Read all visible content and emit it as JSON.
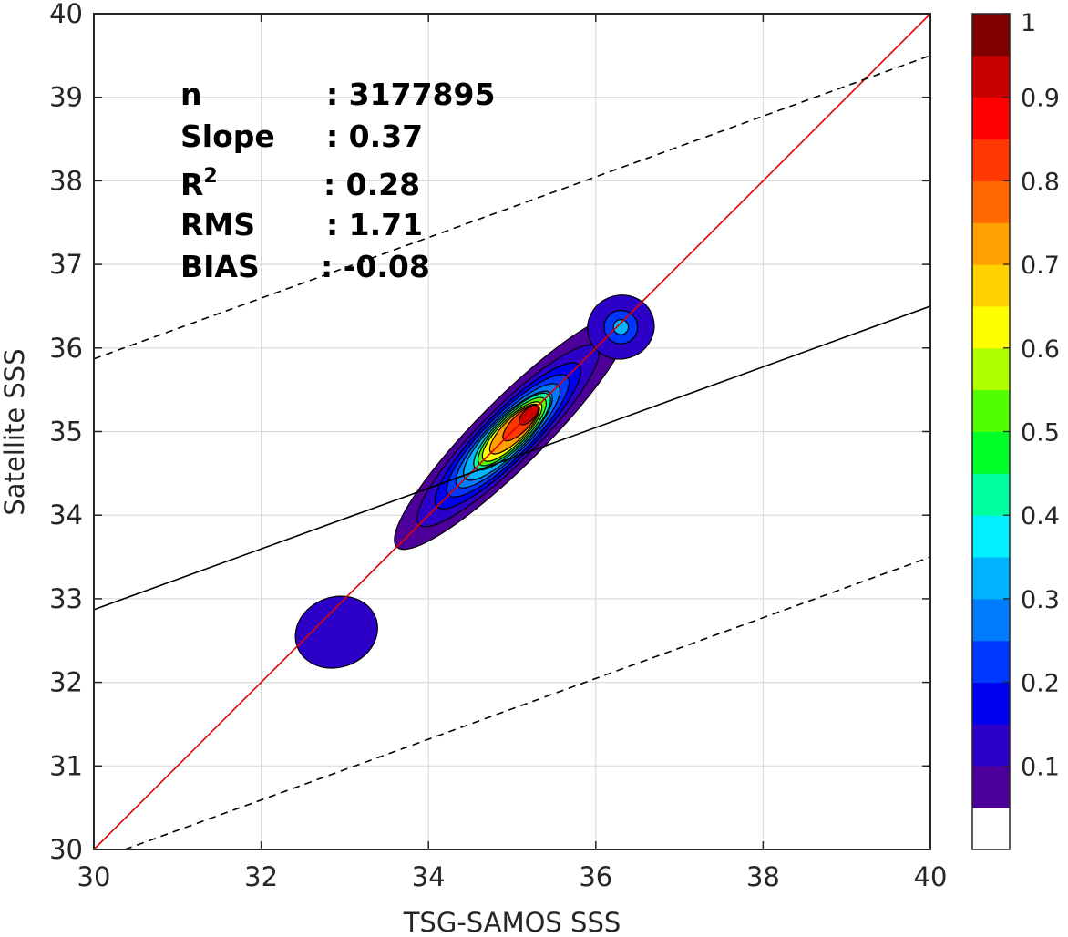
{
  "chart_data": {
    "type": "contour",
    "xlabel": "TSG-SAMOS SSS",
    "ylabel": "Satellite SSS",
    "xlim": [
      30,
      40
    ],
    "ylim": [
      30,
      40
    ],
    "x_ticks": [
      "30",
      "32",
      "34",
      "36",
      "38",
      "40"
    ],
    "y_ticks": [
      "30",
      "31",
      "32",
      "33",
      "34",
      "35",
      "36",
      "37",
      "38",
      "39",
      "40"
    ],
    "grid": true,
    "stats": [
      {
        "label": "n",
        "value": ": 3177895"
      },
      {
        "label": "Slope",
        "value": ": 0.37"
      },
      {
        "label": "R",
        "sup": "2",
        "value": ": 0.28"
      },
      {
        "label": "RMS",
        "value": ": 1.71"
      },
      {
        "label": "BIAS",
        "value": ": -0.08"
      }
    ],
    "lines": {
      "identity": {
        "x": [
          30,
          40
        ],
        "y": [
          30,
          40
        ],
        "color": "#e00000"
      },
      "fit": {
        "x": [
          30,
          40
        ],
        "y": [
          32.87,
          36.5
        ],
        "color": "#000000"
      },
      "upper_bound": {
        "x": [
          30,
          40
        ],
        "y": [
          35.87,
          39.5
        ],
        "dashed": true
      },
      "lower_bound": {
        "x": [
          30.37,
          40
        ],
        "y": [
          30,
          33.5
        ],
        "dashed": true
      }
    },
    "colorbar": {
      "ticks": [
        "0.1",
        "0.2",
        "0.3",
        "0.4",
        "0.5",
        "0.6",
        "0.7",
        "0.8",
        "0.9",
        "1"
      ],
      "range": [
        0,
        1
      ],
      "colors": [
        "#ffffff",
        "#4c0099",
        "#2d00c8",
        "#0000f0",
        "#0037ff",
        "#007cff",
        "#00b4ff",
        "#00f0ff",
        "#00ffa0",
        "#00ff28",
        "#50ff00",
        "#b0ff00",
        "#ffff00",
        "#ffd200",
        "#ffa000",
        "#ff6900",
        "#ff3700",
        "#ff0000",
        "#c80000",
        "#800000"
      ]
    },
    "density_levels": [
      {
        "level": 0.05,
        "cx": 35.0,
        "cy": 35.0,
        "rx": 1.95,
        "ry": 0.4
      },
      {
        "level": 0.1,
        "cx": 34.95,
        "cy": 34.95,
        "rx": 1.5,
        "ry": 0.33
      },
      {
        "level": 0.15,
        "cx": 34.95,
        "cy": 34.95,
        "rx": 1.2,
        "ry": 0.29
      },
      {
        "level": 0.2,
        "cx": 34.95,
        "cy": 34.95,
        "rx": 1.0,
        "ry": 0.26
      },
      {
        "level": 0.25,
        "cx": 34.95,
        "cy": 34.95,
        "rx": 0.85,
        "ry": 0.23
      },
      {
        "level": 0.3,
        "cx": 34.95,
        "cy": 34.95,
        "rx": 0.72,
        "ry": 0.21
      },
      {
        "level": 0.4,
        "cx": 35.0,
        "cy": 35.0,
        "rx": 0.62,
        "ry": 0.19
      },
      {
        "level": 0.5,
        "cx": 35.0,
        "cy": 35.0,
        "rx": 0.55,
        "ry": 0.17
      },
      {
        "level": 0.6,
        "cx": 35.0,
        "cy": 35.0,
        "rx": 0.48,
        "ry": 0.15
      },
      {
        "level": 0.7,
        "cx": 35.03,
        "cy": 35.03,
        "rx": 0.4,
        "ry": 0.13
      },
      {
        "level": 0.8,
        "cx": 35.1,
        "cy": 35.1,
        "rx": 0.28,
        "ry": 0.1
      },
      {
        "level": 0.9,
        "cx": 35.2,
        "cy": 35.2,
        "rx": 0.15,
        "ry": 0.07
      }
    ],
    "secondary_clusters": [
      {
        "cx": 36.3,
        "cy": 36.25,
        "rx": 0.4,
        "ry": 0.38,
        "level": 0.1,
        "inner_level": 0.2,
        "inner_rx": 0.2,
        "inner_ry": 0.2,
        "peak_level": 0.3
      },
      {
        "cx": 32.9,
        "cy": 32.6,
        "rx": 0.5,
        "ry": 0.42,
        "level": 0.1
      }
    ]
  }
}
